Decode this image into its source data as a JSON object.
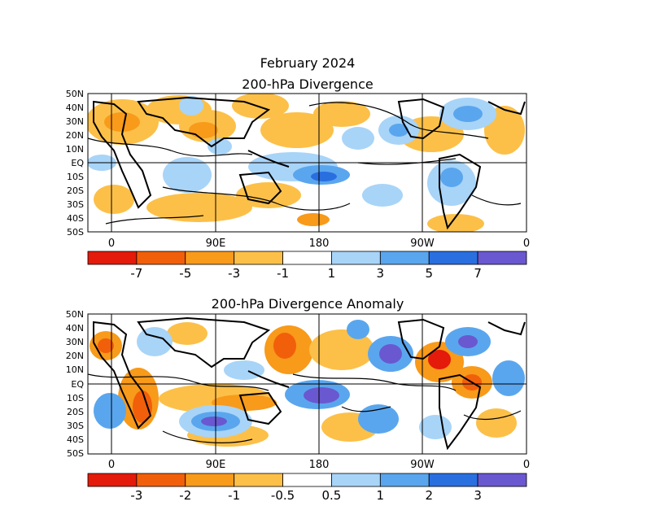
{
  "title": "February 2024",
  "panels": [
    {
      "subtitle": "200-hPa Divergence",
      "lat_labels": [
        "50N",
        "40N",
        "30N",
        "20N",
        "10N",
        "EQ",
        "10S",
        "20S",
        "30S",
        "40S",
        "50S"
      ],
      "lon_labels": [
        "0",
        "90E",
        "180",
        "90W",
        "0"
      ],
      "colorbar": {
        "colors": [
          "#e41a0a",
          "#f25f0a",
          "#f89a1a",
          "#fcc048",
          "#ffffff",
          "#a8d4f8",
          "#5aa6ee",
          "#2a6fe0",
          "#6a58d0"
        ],
        "labels": [
          "-7",
          "-5",
          "-3",
          "-1",
          "1",
          "3",
          "5",
          "7"
        ]
      }
    },
    {
      "subtitle": "200-hPa Divergence Anomaly",
      "lat_labels": [
        "50N",
        "40N",
        "30N",
        "20N",
        "10N",
        "EQ",
        "10S",
        "20S",
        "30S",
        "40S",
        "50S"
      ],
      "lon_labels": [
        "0",
        "90E",
        "180",
        "90W",
        "0"
      ],
      "colorbar": {
        "colors": [
          "#e41a0a",
          "#f25f0a",
          "#f89a1a",
          "#fcc048",
          "#ffffff",
          "#a8d4f8",
          "#5aa6ee",
          "#2a6fe0",
          "#6a58d0"
        ],
        "labels": [
          "-3",
          "-2",
          "-1",
          "-0.5",
          "0.5",
          "1",
          "2",
          "3"
        ]
      }
    }
  ]
}
